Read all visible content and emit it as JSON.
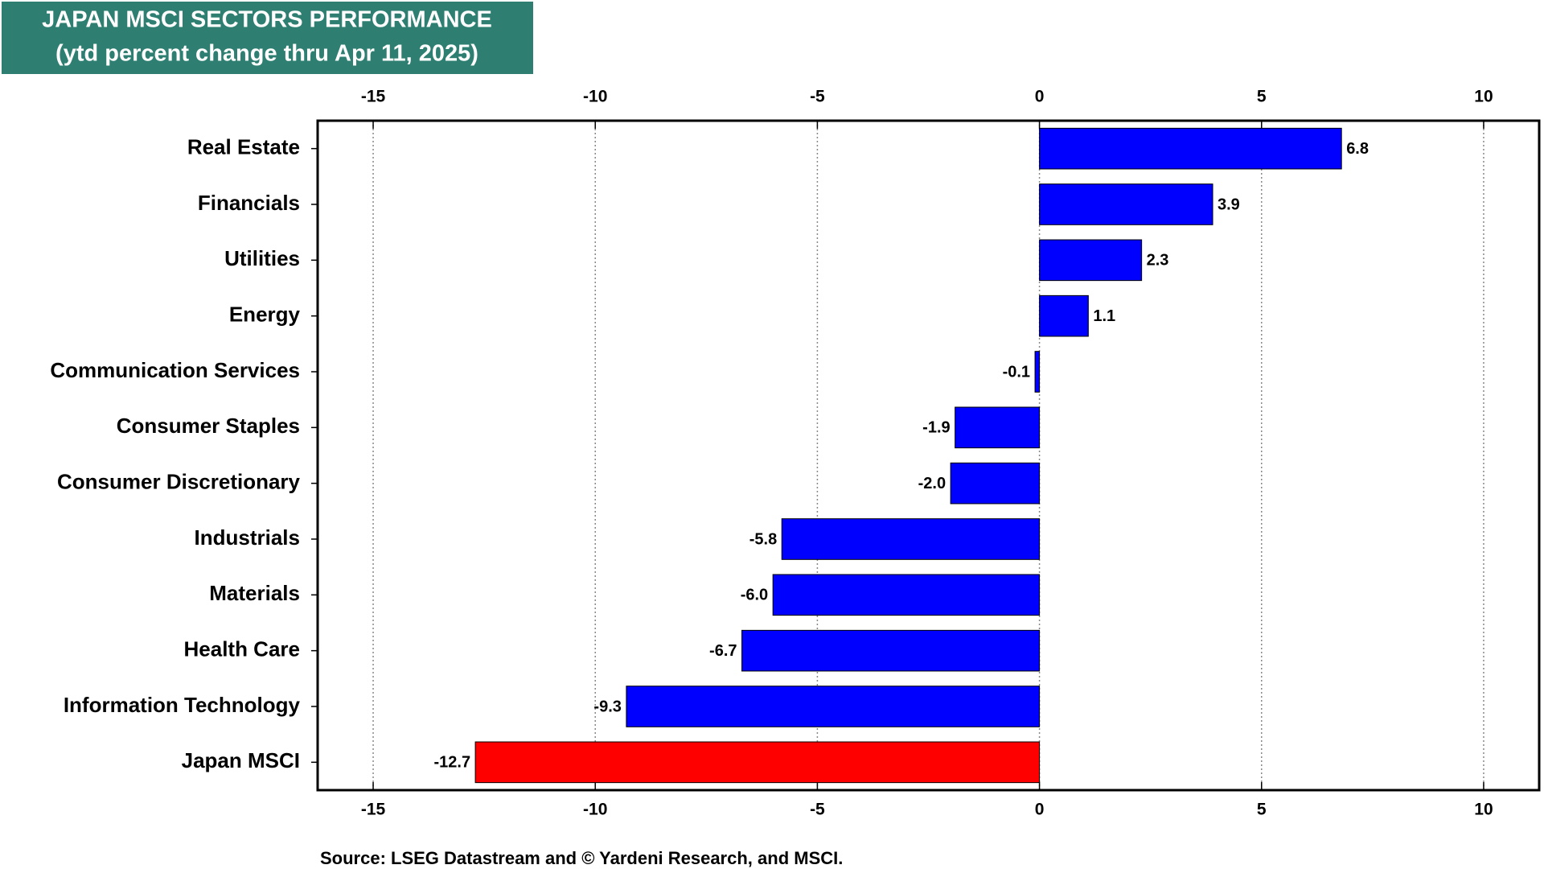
{
  "chart_data": {
    "type": "bar",
    "orientation": "horizontal",
    "title": "JAPAN MSCI SECTORS PERFORMANCE",
    "subtitle": "(ytd percent change thru Apr 11, 2025)",
    "source": "Source: LSEG Datastream and © Yardeni Research, and MSCI.",
    "categories": [
      "Real Estate",
      "Financials",
      "Utilities",
      "Energy",
      "Communication Services",
      "Consumer Staples",
      "Consumer Discretionary",
      "Industrials",
      "Materials",
      "Health Care",
      "Information Technology",
      "Japan MSCI"
    ],
    "values": [
      6.8,
      3.9,
      2.3,
      1.1,
      -0.1,
      -1.9,
      -2.0,
      -5.8,
      -6.0,
      -6.7,
      -9.3,
      -12.7
    ],
    "value_labels": [
      "6.8",
      "3.9",
      "2.3",
      "1.1",
      "-0.1",
      "-1.9",
      "-2.0",
      "-5.8",
      "-6.0",
      "-6.7",
      "-9.3",
      "-12.7"
    ],
    "colors": [
      "#0000ff",
      "#0000ff",
      "#0000ff",
      "#0000ff",
      "#0000ff",
      "#0000ff",
      "#0000ff",
      "#0000ff",
      "#0000ff",
      "#0000ff",
      "#0000ff",
      "#ff0000"
    ],
    "xlim": [
      -16.25,
      11.25
    ],
    "xticks": [
      -15,
      -10,
      -5,
      0,
      5,
      10
    ],
    "grid": true
  }
}
